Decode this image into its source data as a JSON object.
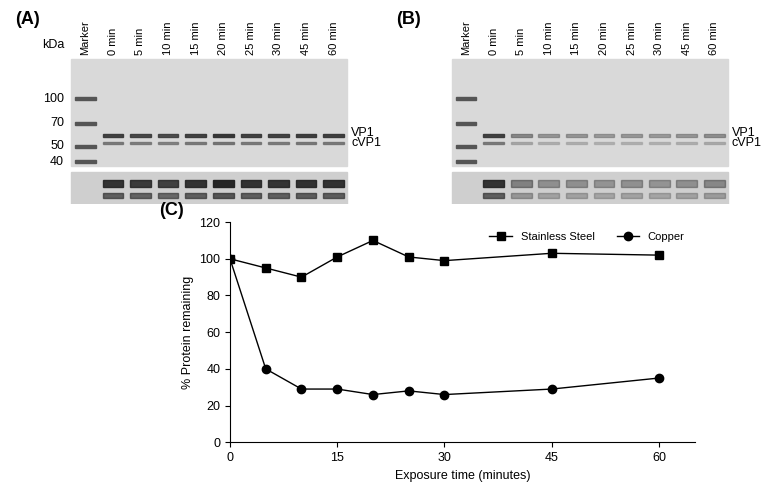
{
  "gels": [
    {
      "label": "(A)",
      "axis_title": "kDa",
      "marker_kda": [
        100,
        70,
        50,
        40
      ],
      "lanes": [
        "Marker",
        "0 min",
        "5 min",
        "10 min",
        "15 min",
        "20 min",
        "25 min",
        "30 min",
        "45 min",
        "60 min"
      ],
      "band_labels": [
        "VP1",
        "cVP1"
      ]
    },
    {
      "label": "(B)",
      "lanes": [
        "Marker",
        "0 min",
        "5 min",
        "10 min",
        "15 min",
        "20 min",
        "25 min",
        "30 min",
        "45 min",
        "60 min"
      ],
      "band_labels": [
        "VP1",
        "cVP1"
      ]
    }
  ],
  "chart_data": {
    "type": "line",
    "label": "(C)",
    "x_label": "Exposure time (minutes)",
    "y_label": "% Protein remaining",
    "x": [
      0,
      5,
      10,
      15,
      20,
      25,
      30,
      45,
      60
    ],
    "series": [
      {
        "name": "Stainless Steel",
        "color": "#000000",
        "marker": "square",
        "line_style": "solid",
        "values": [
          100,
          95,
          90,
          101,
          110,
          101,
          99,
          103,
          102
        ]
      },
      {
        "name": "Copper",
        "color": "#000000",
        "marker": "circle",
        "line_style": "solid",
        "values": [
          100,
          40,
          29,
          29,
          26,
          28,
          26,
          29,
          35
        ]
      }
    ],
    "xlim": [
      0,
      65
    ],
    "xticks": [
      0,
      15,
      30,
      45,
      60
    ],
    "ylim": [
      0,
      120
    ],
    "yticks": [
      0,
      20,
      40,
      60,
      80,
      100,
      120
    ],
    "legend": "upper right",
    "grid": false
  }
}
